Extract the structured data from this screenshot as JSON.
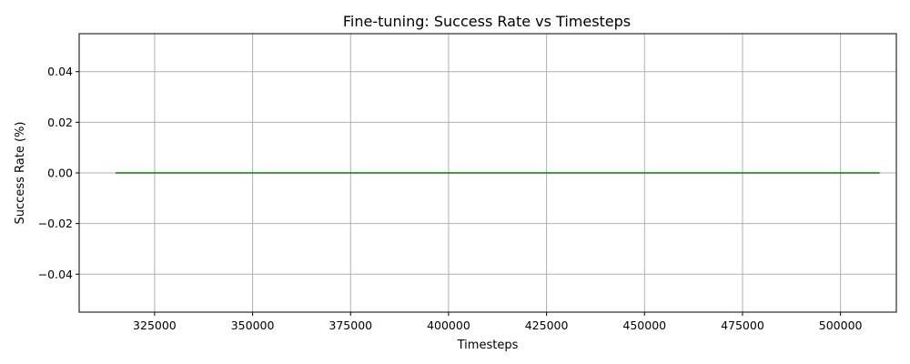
{
  "chart_data": {
    "type": "line",
    "title": "Fine-tuning: Success Rate vs Timesteps",
    "xlabel": "Timesteps",
    "ylabel": "Success Rate (%)",
    "xlim": [
      305750,
      514250
    ],
    "ylim": [
      -0.055,
      0.055
    ],
    "xticks": [
      325000,
      350000,
      375000,
      400000,
      425000,
      450000,
      475000,
      500000
    ],
    "xtick_labels": [
      "325000",
      "350000",
      "375000",
      "400000",
      "425000",
      "450000",
      "475000",
      "500000"
    ],
    "yticks": [
      -0.04,
      -0.02,
      0.0,
      0.02,
      0.04
    ],
    "ytick_labels": [
      "−0.04",
      "−0.02",
      "0.00",
      "0.02",
      "0.04"
    ],
    "grid": true,
    "series": [
      {
        "color": "#008000",
        "x": [
          315000,
          510000
        ],
        "y": [
          0,
          0
        ]
      }
    ]
  }
}
